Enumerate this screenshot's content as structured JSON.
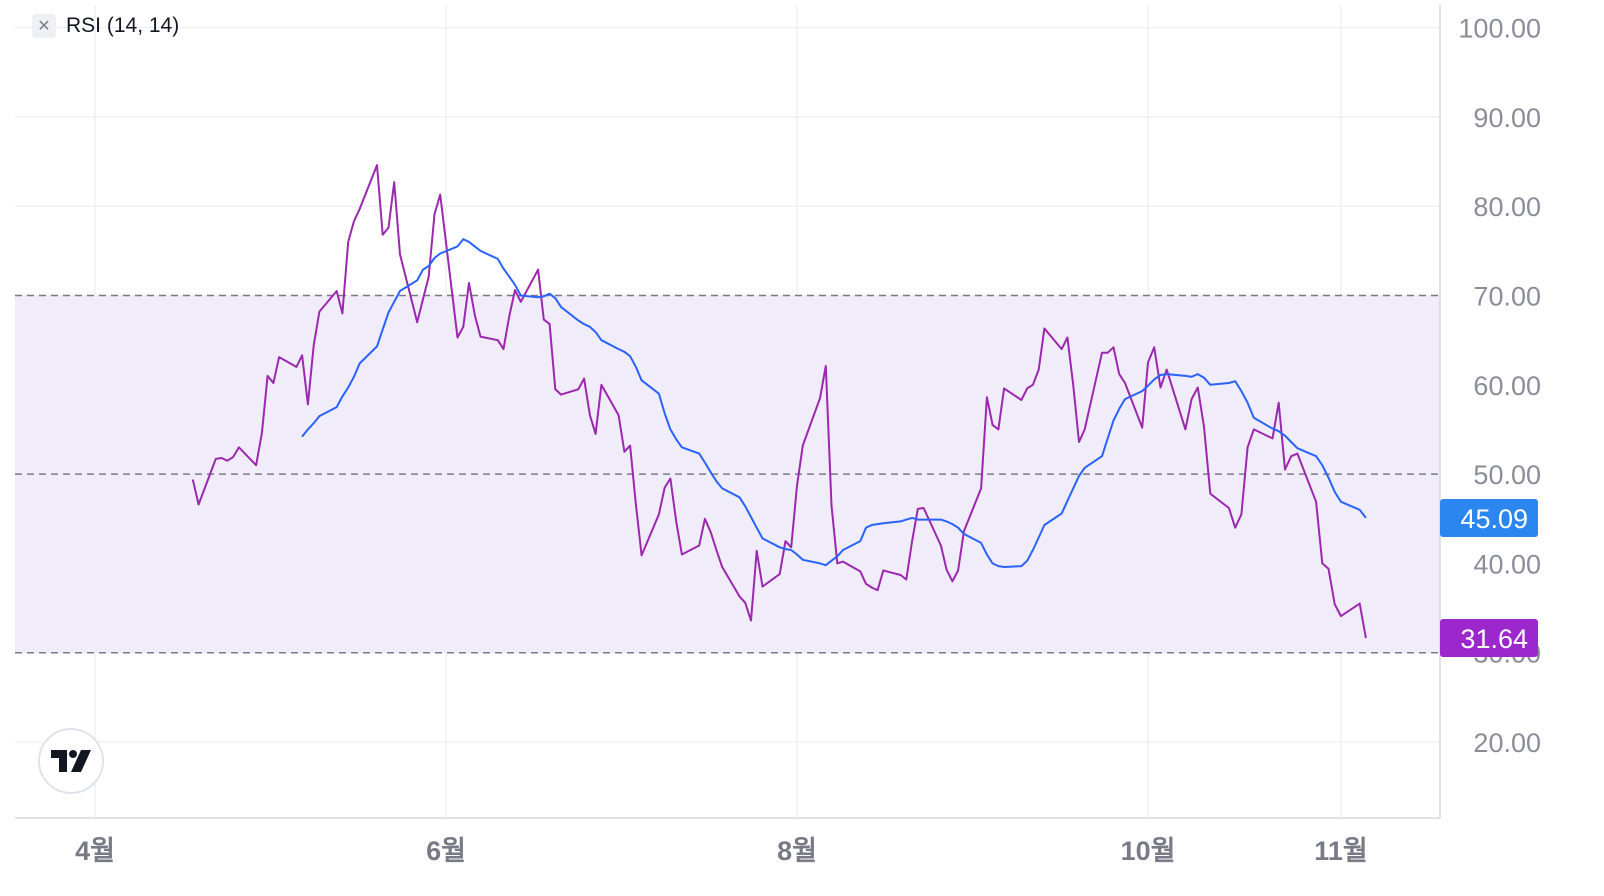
{
  "legend": {
    "label": "RSI (14, 14)",
    "close_icon": "close-icon"
  },
  "logo": {
    "icon": "tradingview-logo-icon",
    "text": "TV"
  },
  "chart_data": {
    "type": "line",
    "title": "",
    "xlabel": "",
    "ylabel": "",
    "ylim": [
      12,
      103
    ],
    "y_ticks": [
      "20.00",
      "30.00",
      "40.00",
      "50.00",
      "60.00",
      "70.00",
      "80.00",
      "90.00",
      "100.00"
    ],
    "x_ticks": [
      "4월",
      "6월",
      "8월",
      "10월",
      "11월"
    ],
    "x_tick_dates": [
      "2024-04-01",
      "2024-06-01",
      "2024-08-01",
      "2024-10-01",
      "2024-11-01"
    ],
    "x_range": [
      "2024-04-01",
      "2024-11-20"
    ],
    "bands": {
      "upper": 70,
      "middle": 50,
      "lower": 30,
      "fill_color": "#f1ecf9",
      "line_color": "#787b86"
    },
    "last_values": {
      "rsi": "31.64",
      "rsi_ma": "45.09"
    },
    "colors": {
      "rsi": "#9c27b0",
      "rsi_ma": "#2962ff",
      "rsi_badge": "#9c27cc",
      "rsi_ma_badge": "#2c86f0",
      "grid": "#f0f1f4"
    },
    "series": [
      {
        "color": "#9c27b0",
        "points": [
          [
            "2024-04-18",
            49.4
          ],
          [
            "2024-04-19",
            46.6
          ],
          [
            "2024-04-22",
            51.7
          ],
          [
            "2024-04-23",
            51.8
          ],
          [
            "2024-04-24",
            51.5
          ],
          [
            "2024-04-25",
            51.9
          ],
          [
            "2024-04-26",
            53.0
          ],
          [
            "2024-04-29",
            51.0
          ],
          [
            "2024-04-30",
            54.6
          ],
          [
            "2024-05-01",
            61.0
          ],
          [
            "2024-05-02",
            60.2
          ],
          [
            "2024-05-03",
            63.1
          ],
          [
            "2024-05-06",
            62.0
          ],
          [
            "2024-05-07",
            63.3
          ],
          [
            "2024-05-08",
            57.8
          ],
          [
            "2024-05-09",
            64.4
          ],
          [
            "2024-05-10",
            68.2
          ],
          [
            "2024-05-13",
            70.5
          ],
          [
            "2024-05-14",
            68.0
          ],
          [
            "2024-05-15",
            76.0
          ],
          [
            "2024-05-16",
            78.3
          ],
          [
            "2024-05-17",
            79.7
          ],
          [
            "2024-05-20",
            84.6
          ],
          [
            "2024-05-21",
            76.8
          ],
          [
            "2024-05-22",
            77.6
          ],
          [
            "2024-05-23",
            82.7
          ],
          [
            "2024-05-24",
            74.6
          ],
          [
            "2024-05-27",
            67.0
          ],
          [
            "2024-05-28",
            69.6
          ],
          [
            "2024-05-29",
            72.1
          ],
          [
            "2024-05-30",
            79.1
          ],
          [
            "2024-05-31",
            81.3
          ],
          [
            "2024-06-03",
            65.3
          ],
          [
            "2024-06-04",
            66.5
          ],
          [
            "2024-06-05",
            71.4
          ],
          [
            "2024-06-06",
            67.8
          ],
          [
            "2024-06-07",
            65.4
          ],
          [
            "2024-06-10",
            65.0
          ],
          [
            "2024-06-11",
            64.0
          ],
          [
            "2024-06-12",
            67.7
          ],
          [
            "2024-06-13",
            70.6
          ],
          [
            "2024-06-14",
            69.3
          ],
          [
            "2024-06-17",
            72.9
          ],
          [
            "2024-06-18",
            67.3
          ],
          [
            "2024-06-19",
            66.8
          ],
          [
            "2024-06-20",
            59.5
          ],
          [
            "2024-06-21",
            58.9
          ],
          [
            "2024-06-24",
            59.5
          ],
          [
            "2024-06-25",
            60.7
          ],
          [
            "2024-06-26",
            56.6
          ],
          [
            "2024-06-27",
            54.5
          ],
          [
            "2024-06-28",
            60.0
          ],
          [
            "2024-07-01",
            56.6
          ],
          [
            "2024-07-02",
            52.5
          ],
          [
            "2024-07-03",
            53.2
          ],
          [
            "2024-07-04",
            46.6
          ],
          [
            "2024-07-05",
            40.9
          ],
          [
            "2024-07-08",
            45.5
          ],
          [
            "2024-07-09",
            48.5
          ],
          [
            "2024-07-10",
            49.5
          ],
          [
            "2024-07-11",
            44.7
          ],
          [
            "2024-07-12",
            41.0
          ],
          [
            "2024-07-15",
            42.0
          ],
          [
            "2024-07-16",
            45.0
          ],
          [
            "2024-07-17",
            43.5
          ],
          [
            "2024-07-18",
            41.5
          ],
          [
            "2024-07-19",
            39.6
          ],
          [
            "2024-07-22",
            36.3
          ],
          [
            "2024-07-23",
            35.6
          ],
          [
            "2024-07-24",
            33.6
          ],
          [
            "2024-07-25",
            41.4
          ],
          [
            "2024-07-26",
            37.4
          ],
          [
            "2024-07-29",
            38.8
          ],
          [
            "2024-07-30",
            42.5
          ],
          [
            "2024-07-31",
            41.8
          ],
          [
            "2024-08-01",
            48.7
          ],
          [
            "2024-08-02",
            53.2
          ],
          [
            "2024-08-05",
            58.5
          ],
          [
            "2024-08-06",
            62.1
          ],
          [
            "2024-08-07",
            46.5
          ],
          [
            "2024-08-08",
            40.0
          ],
          [
            "2024-08-09",
            40.2
          ],
          [
            "2024-08-12",
            39.1
          ],
          [
            "2024-08-13",
            37.7
          ],
          [
            "2024-08-14",
            37.3
          ],
          [
            "2024-08-15",
            37.0
          ],
          [
            "2024-08-16",
            39.2
          ],
          [
            "2024-08-19",
            38.7
          ],
          [
            "2024-08-20",
            38.2
          ],
          [
            "2024-08-21",
            42.5
          ],
          [
            "2024-08-22",
            46.1
          ],
          [
            "2024-08-23",
            46.2
          ],
          [
            "2024-08-26",
            42.0
          ],
          [
            "2024-08-27",
            39.3
          ],
          [
            "2024-08-28",
            38.0
          ],
          [
            "2024-08-29",
            39.2
          ],
          [
            "2024-08-30",
            43.6
          ],
          [
            "2024-09-02",
            48.4
          ],
          [
            "2024-09-03",
            58.6
          ],
          [
            "2024-09-04",
            55.5
          ],
          [
            "2024-09-05",
            55.0
          ],
          [
            "2024-09-06",
            59.6
          ],
          [
            "2024-09-09",
            58.3
          ],
          [
            "2024-09-10",
            59.6
          ],
          [
            "2024-09-11",
            60.0
          ],
          [
            "2024-09-12",
            61.7
          ],
          [
            "2024-09-13",
            66.3
          ],
          [
            "2024-09-16",
            64.0
          ],
          [
            "2024-09-17",
            65.3
          ],
          [
            "2024-09-18",
            60.0
          ],
          [
            "2024-09-19",
            53.6
          ],
          [
            "2024-09-20",
            55.0
          ],
          [
            "2024-09-23",
            63.6
          ],
          [
            "2024-09-24",
            63.6
          ],
          [
            "2024-09-25",
            64.2
          ],
          [
            "2024-09-26",
            61.2
          ],
          [
            "2024-09-27",
            60.2
          ],
          [
            "2024-09-30",
            55.2
          ],
          [
            "2024-10-01",
            62.5
          ],
          [
            "2024-10-02",
            64.2
          ],
          [
            "2024-10-03",
            59.7
          ],
          [
            "2024-10-04",
            61.7
          ],
          [
            "2024-10-07",
            55.0
          ],
          [
            "2024-10-08",
            58.4
          ],
          [
            "2024-10-09",
            59.7
          ],
          [
            "2024-10-10",
            55.3
          ],
          [
            "2024-10-11",
            47.8
          ],
          [
            "2024-10-14",
            46.2
          ],
          [
            "2024-10-15",
            44.0
          ],
          [
            "2024-10-16",
            45.5
          ],
          [
            "2024-10-17",
            53.0
          ],
          [
            "2024-10-18",
            55.0
          ],
          [
            "2024-10-21",
            54.0
          ],
          [
            "2024-10-22",
            58.0
          ],
          [
            "2024-10-23",
            50.5
          ],
          [
            "2024-10-24",
            52.0
          ],
          [
            "2024-10-25",
            52.3
          ],
          [
            "2024-10-28",
            46.9
          ],
          [
            "2024-10-29",
            40.0
          ],
          [
            "2024-10-30",
            39.4
          ],
          [
            "2024-10-31",
            35.4
          ],
          [
            "2024-11-01",
            34.1
          ],
          [
            "2024-11-04",
            35.5
          ],
          [
            "2024-11-05",
            31.64
          ]
        ]
      },
      {
        "color": "#2962ff",
        "points": [
          [
            "2024-05-07",
            54.2
          ],
          [
            "2024-05-08",
            55.0
          ],
          [
            "2024-05-09",
            55.7
          ],
          [
            "2024-05-10",
            56.5
          ],
          [
            "2024-05-13",
            57.5
          ],
          [
            "2024-05-14",
            58.7
          ],
          [
            "2024-05-15",
            59.7
          ],
          [
            "2024-05-16",
            60.9
          ],
          [
            "2024-05-17",
            62.4
          ],
          [
            "2024-05-20",
            64.3
          ],
          [
            "2024-05-21",
            66.2
          ],
          [
            "2024-05-22",
            68.1
          ],
          [
            "2024-05-23",
            69.3
          ],
          [
            "2024-05-24",
            70.5
          ],
          [
            "2024-05-27",
            71.7
          ],
          [
            "2024-05-28",
            72.9
          ],
          [
            "2024-05-29",
            73.3
          ],
          [
            "2024-05-30",
            74.2
          ],
          [
            "2024-05-31",
            74.7
          ],
          [
            "2024-06-03",
            75.5
          ],
          [
            "2024-06-04",
            76.3
          ],
          [
            "2024-06-05",
            76.0
          ],
          [
            "2024-06-06",
            75.5
          ],
          [
            "2024-06-07",
            75.0
          ],
          [
            "2024-06-10",
            74.1
          ],
          [
            "2024-06-11",
            73.0
          ],
          [
            "2024-06-12",
            72.1
          ],
          [
            "2024-06-13",
            71.2
          ],
          [
            "2024-06-14",
            70.0
          ],
          [
            "2024-06-17",
            69.8
          ],
          [
            "2024-06-18",
            69.9
          ],
          [
            "2024-06-19",
            70.2
          ],
          [
            "2024-06-20",
            69.7
          ],
          [
            "2024-06-21",
            68.7
          ],
          [
            "2024-06-24",
            67.2
          ],
          [
            "2024-06-25",
            66.8
          ],
          [
            "2024-06-26",
            66.5
          ],
          [
            "2024-06-27",
            65.9
          ],
          [
            "2024-06-28",
            65.0
          ],
          [
            "2024-07-01",
            64.0
          ],
          [
            "2024-07-02",
            63.7
          ],
          [
            "2024-07-03",
            63.2
          ],
          [
            "2024-07-04",
            62.0
          ],
          [
            "2024-07-05",
            60.5
          ],
          [
            "2024-07-08",
            59.0
          ],
          [
            "2024-07-09",
            56.8
          ],
          [
            "2024-07-10",
            55.0
          ],
          [
            "2024-07-11",
            53.9
          ],
          [
            "2024-07-12",
            53.0
          ],
          [
            "2024-07-15",
            52.3
          ],
          [
            "2024-07-16",
            51.3
          ],
          [
            "2024-07-17",
            50.2
          ],
          [
            "2024-07-18",
            49.2
          ],
          [
            "2024-07-19",
            48.4
          ],
          [
            "2024-07-22",
            47.4
          ],
          [
            "2024-07-23",
            46.4
          ],
          [
            "2024-07-24",
            45.2
          ],
          [
            "2024-07-25",
            44.0
          ],
          [
            "2024-07-26",
            42.8
          ],
          [
            "2024-07-29",
            41.8
          ],
          [
            "2024-07-30",
            41.6
          ],
          [
            "2024-07-31",
            41.5
          ],
          [
            "2024-08-01",
            41.0
          ],
          [
            "2024-08-02",
            40.4
          ],
          [
            "2024-08-05",
            40.0
          ],
          [
            "2024-08-06",
            39.8
          ],
          [
            "2024-08-07",
            40.3
          ],
          [
            "2024-08-08",
            40.8
          ],
          [
            "2024-08-09",
            41.5
          ],
          [
            "2024-08-12",
            42.5
          ],
          [
            "2024-08-13",
            44.0
          ],
          [
            "2024-08-14",
            44.3
          ],
          [
            "2024-08-15",
            44.4
          ],
          [
            "2024-08-16",
            44.5
          ],
          [
            "2024-08-19",
            44.7
          ],
          [
            "2024-08-20",
            44.9
          ],
          [
            "2024-08-21",
            45.1
          ],
          [
            "2024-08-22",
            44.9
          ],
          [
            "2024-08-23",
            44.9
          ],
          [
            "2024-08-26",
            44.9
          ],
          [
            "2024-08-27",
            44.7
          ],
          [
            "2024-08-28",
            44.4
          ],
          [
            "2024-08-29",
            44.0
          ],
          [
            "2024-08-30",
            43.3
          ],
          [
            "2024-09-02",
            42.3
          ],
          [
            "2024-09-03",
            41.0
          ],
          [
            "2024-09-04",
            40.0
          ],
          [
            "2024-09-05",
            39.7
          ],
          [
            "2024-09-06",
            39.6
          ],
          [
            "2024-09-09",
            39.7
          ],
          [
            "2024-09-10",
            40.3
          ],
          [
            "2024-09-11",
            41.5
          ],
          [
            "2024-09-12",
            42.9
          ],
          [
            "2024-09-13",
            44.3
          ],
          [
            "2024-09-16",
            45.6
          ],
          [
            "2024-09-17",
            47.0
          ],
          [
            "2024-09-18",
            48.4
          ],
          [
            "2024-09-19",
            49.8
          ],
          [
            "2024-09-20",
            50.7
          ],
          [
            "2024-09-23",
            52.0
          ],
          [
            "2024-09-24",
            54.0
          ],
          [
            "2024-09-25",
            56.0
          ],
          [
            "2024-09-26",
            57.3
          ],
          [
            "2024-09-27",
            58.4
          ],
          [
            "2024-09-30",
            59.3
          ],
          [
            "2024-10-01",
            59.9
          ],
          [
            "2024-10-02",
            60.6
          ],
          [
            "2024-10-03",
            61.1
          ],
          [
            "2024-10-04",
            61.2
          ],
          [
            "2024-10-07",
            61.0
          ],
          [
            "2024-10-08",
            60.9
          ],
          [
            "2024-10-09",
            61.2
          ],
          [
            "2024-10-10",
            60.8
          ],
          [
            "2024-10-11",
            60.0
          ],
          [
            "2024-10-14",
            60.2
          ],
          [
            "2024-10-15",
            60.4
          ],
          [
            "2024-10-16",
            59.3
          ],
          [
            "2024-10-17",
            58.0
          ],
          [
            "2024-10-18",
            56.3
          ],
          [
            "2024-10-21",
            55.1
          ],
          [
            "2024-10-22",
            54.8
          ],
          [
            "2024-10-23",
            54.3
          ],
          [
            "2024-10-24",
            53.6
          ],
          [
            "2024-10-25",
            52.9
          ],
          [
            "2024-10-28",
            52.0
          ],
          [
            "2024-10-29",
            51.0
          ],
          [
            "2024-10-30",
            49.6
          ],
          [
            "2024-10-31",
            48.0
          ],
          [
            "2024-11-01",
            46.9
          ],
          [
            "2024-11-04",
            46.0
          ],
          [
            "2024-11-05",
            45.09
          ]
        ]
      }
    ]
  }
}
